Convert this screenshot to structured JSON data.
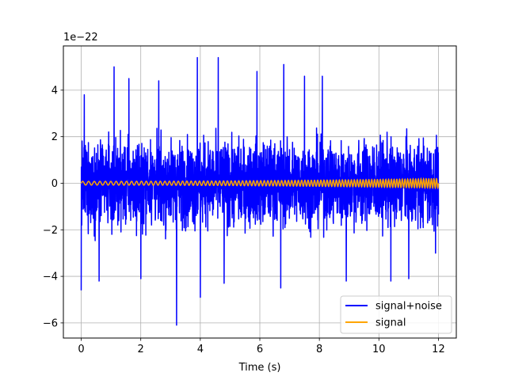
{
  "chart_data": {
    "type": "line",
    "title": "",
    "xlabel": "Time (s)",
    "ylabel": "",
    "offset_text": "1e−22",
    "xlim": [
      -0.6,
      12.6
    ],
    "ylim": [
      -6.65,
      5.9
    ],
    "x_ticks": [
      0,
      2,
      4,
      6,
      8,
      10,
      12
    ],
    "x_tick_labels": [
      "0",
      "2",
      "4",
      "6",
      "8",
      "10",
      "12"
    ],
    "y_ticks": [
      -6,
      -4,
      -2,
      0,
      2,
      4
    ],
    "y_tick_labels": [
      "−6",
      "−4",
      "−2",
      "0",
      "2",
      "4"
    ],
    "grid": true,
    "legend_position": "lower-right",
    "series": [
      {
        "name": "signal+noise",
        "color": "#0000ff",
        "x_range": [
          0,
          12
        ],
        "typical_amplitude": 1.6,
        "peaks": [
          {
            "x": 0.0,
            "y": -4.6
          },
          {
            "x": 0.1,
            "y": 3.8
          },
          {
            "x": 0.6,
            "y": -4.2
          },
          {
            "x": 1.1,
            "y": 5.0
          },
          {
            "x": 1.6,
            "y": 4.5
          },
          {
            "x": 2.0,
            "y": -4.1
          },
          {
            "x": 2.6,
            "y": 4.4
          },
          {
            "x": 3.2,
            "y": -6.1
          },
          {
            "x": 3.9,
            "y": 5.4
          },
          {
            "x": 4.0,
            "y": -4.9
          },
          {
            "x": 4.6,
            "y": 5.4
          },
          {
            "x": 4.8,
            "y": -4.3
          },
          {
            "x": 5.9,
            "y": 4.8
          },
          {
            "x": 6.7,
            "y": -4.5
          },
          {
            "x": 6.8,
            "y": 5.1
          },
          {
            "x": 7.5,
            "y": 4.6
          },
          {
            "x": 8.1,
            "y": 4.6
          },
          {
            "x": 8.9,
            "y": -4.2
          },
          {
            "x": 10.4,
            "y": -4.2
          },
          {
            "x": 11.0,
            "y": -4.1
          },
          {
            "x": 11.9,
            "y": -3.0
          }
        ]
      },
      {
        "name": "signal",
        "color": "#ffa500",
        "x_range": [
          0,
          12
        ],
        "amplitude_start": 0.08,
        "amplitude_end": 0.2
      }
    ]
  }
}
